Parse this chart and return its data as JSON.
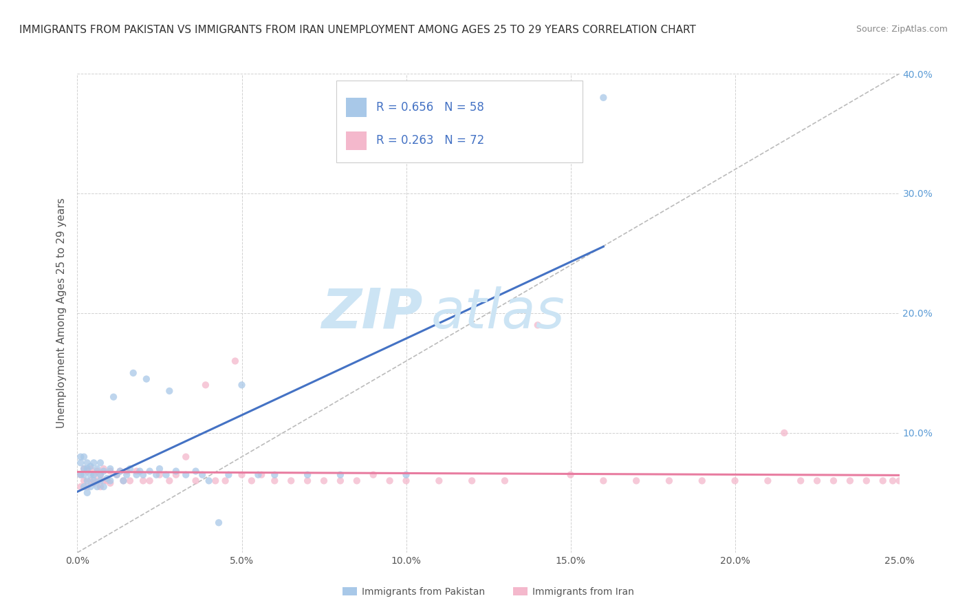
{
  "title": "IMMIGRANTS FROM PAKISTAN VS IMMIGRANTS FROM IRAN UNEMPLOYMENT AMONG AGES 25 TO 29 YEARS CORRELATION CHART",
  "source": "Source: ZipAtlas.com",
  "ylabel": "Unemployment Among Ages 25 to 29 years",
  "xlabel_pakistan": "Immigrants from Pakistan",
  "xlabel_iran": "Immigrants from Iran",
  "xmin": 0.0,
  "xmax": 0.25,
  "ymin": 0.0,
  "ymax": 0.4,
  "xticks": [
    0.0,
    0.05,
    0.1,
    0.15,
    0.2,
    0.25
  ],
  "yticks": [
    0.0,
    0.1,
    0.2,
    0.3,
    0.4
  ],
  "ytick_labels_right": [
    "",
    "10.0%",
    "20.0%",
    "30.0%",
    "40.0%"
  ],
  "xtick_labels": [
    "0.0%",
    "5.0%",
    "10.0%",
    "15.0%",
    "20.0%",
    "25.0%"
  ],
  "pakistan_color": "#a8c8e8",
  "iran_color": "#f4b8cc",
  "pakistan_line_color": "#4472c4",
  "iran_line_color": "#e87ca0",
  "R_pakistan": 0.656,
  "N_pakistan": 58,
  "R_iran": 0.263,
  "N_iran": 72,
  "pakistan_x": [
    0.001,
    0.001,
    0.001,
    0.002,
    0.002,
    0.002,
    0.002,
    0.003,
    0.003,
    0.003,
    0.003,
    0.004,
    0.004,
    0.004,
    0.005,
    0.005,
    0.005,
    0.006,
    0.006,
    0.007,
    0.007,
    0.007,
    0.008,
    0.008,
    0.009,
    0.01,
    0.01,
    0.011,
    0.012,
    0.013,
    0.014,
    0.015,
    0.016,
    0.017,
    0.018,
    0.019,
    0.02,
    0.021,
    0.022,
    0.024,
    0.025,
    0.027,
    0.028,
    0.03,
    0.033,
    0.036,
    0.038,
    0.04,
    0.043,
    0.046,
    0.05,
    0.055,
    0.06,
    0.07,
    0.08,
    0.1,
    0.13,
    0.16
  ],
  "pakistan_y": [
    0.065,
    0.075,
    0.08,
    0.055,
    0.065,
    0.07,
    0.08,
    0.05,
    0.06,
    0.07,
    0.075,
    0.055,
    0.065,
    0.072,
    0.06,
    0.065,
    0.075,
    0.055,
    0.07,
    0.06,
    0.065,
    0.075,
    0.055,
    0.068,
    0.062,
    0.06,
    0.07,
    0.13,
    0.065,
    0.068,
    0.06,
    0.065,
    0.07,
    0.15,
    0.065,
    0.068,
    0.065,
    0.145,
    0.068,
    0.065,
    0.07,
    0.065,
    0.135,
    0.068,
    0.065,
    0.068,
    0.065,
    0.06,
    0.025,
    0.065,
    0.14,
    0.065,
    0.065,
    0.065,
    0.065,
    0.065,
    0.35,
    0.38
  ],
  "iran_x": [
    0.001,
    0.001,
    0.002,
    0.002,
    0.003,
    0.003,
    0.004,
    0.004,
    0.005,
    0.005,
    0.006,
    0.006,
    0.007,
    0.007,
    0.008,
    0.008,
    0.009,
    0.01,
    0.01,
    0.012,
    0.013,
    0.014,
    0.015,
    0.016,
    0.018,
    0.02,
    0.022,
    0.025,
    0.028,
    0.03,
    0.033,
    0.036,
    0.039,
    0.042,
    0.045,
    0.048,
    0.05,
    0.053,
    0.056,
    0.06,
    0.065,
    0.07,
    0.075,
    0.08,
    0.085,
    0.09,
    0.095,
    0.1,
    0.11,
    0.12,
    0.13,
    0.14,
    0.15,
    0.16,
    0.17,
    0.18,
    0.19,
    0.2,
    0.21,
    0.215,
    0.22,
    0.225,
    0.23,
    0.235,
    0.24,
    0.245,
    0.248,
    0.25,
    0.252,
    0.253,
    0.254,
    0.255
  ],
  "iran_y": [
    0.055,
    0.065,
    0.06,
    0.07,
    0.055,
    0.068,
    0.06,
    0.07,
    0.058,
    0.065,
    0.06,
    0.068,
    0.055,
    0.065,
    0.06,
    0.07,
    0.06,
    0.058,
    0.068,
    0.065,
    0.068,
    0.06,
    0.068,
    0.06,
    0.068,
    0.06,
    0.06,
    0.065,
    0.06,
    0.065,
    0.08,
    0.06,
    0.14,
    0.06,
    0.06,
    0.16,
    0.065,
    0.06,
    0.065,
    0.06,
    0.06,
    0.06,
    0.06,
    0.06,
    0.06,
    0.065,
    0.06,
    0.06,
    0.06,
    0.06,
    0.06,
    0.19,
    0.065,
    0.06,
    0.06,
    0.06,
    0.06,
    0.06,
    0.06,
    0.1,
    0.06,
    0.06,
    0.06,
    0.06,
    0.06,
    0.06,
    0.06,
    0.06,
    0.06,
    0.055,
    0.06,
    0.05
  ],
  "background_color": "#ffffff",
  "grid_color": "#cccccc",
  "watermark_zip": "ZIP",
  "watermark_atlas": "atlas",
  "watermark_color": "#cce4f4",
  "title_fontsize": 11,
  "axis_label_fontsize": 11,
  "tick_fontsize": 10,
  "legend_fontsize": 12
}
